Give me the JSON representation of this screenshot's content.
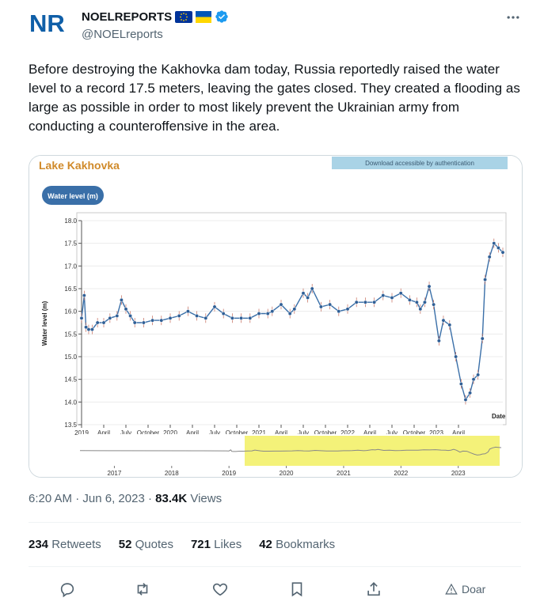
{
  "author": {
    "logo_text": "NR",
    "name": "NOELREPORTS",
    "handle": "@NOELreports",
    "badge_colors": {
      "eu_blue": "#003399",
      "eu_star": "#ffcc00",
      "ua_blue": "#0057b7",
      "ua_yellow": "#ffd700",
      "verified": "#1d9bf0"
    }
  },
  "tweet": {
    "text": "Before destroying the Kakhovka dam today, Russia reportedly raised the water level to a record 17.5 meters, leaving the gates closed. They created a flooding as large as possible in order to most likely prevent the Ukrainian army from conducting a counteroffensive in the area."
  },
  "media": {
    "heading": "Lake Kakhovka",
    "download_banner": "Download accessible by authentication",
    "pill": "Water level (m)"
  },
  "chart_data": {
    "type": "line",
    "ylabel": "Water level (m)",
    "xlabel": "Date",
    "ylim": [
      13.5,
      18.0
    ],
    "yticks": [
      "18.0",
      "17.5",
      "17.0",
      "16.5",
      "16.0",
      "15.5",
      "15.0",
      "14.5",
      "14.0",
      "13.5"
    ],
    "xticks": [
      "2019",
      "April",
      "July",
      "October",
      "2020",
      "April",
      "July",
      "October",
      "2021",
      "April",
      "July",
      "October",
      "2022",
      "April",
      "July",
      "October",
      "2023",
      "April"
    ],
    "overview_ticks": [
      "2017",
      "2018",
      "2019",
      "2020",
      "2021",
      "2022",
      "2023"
    ],
    "series": [
      {
        "x": [
          2019.0,
          2019.03,
          2019.05,
          2019.08,
          2019.12,
          2019.18,
          2019.25,
          2019.32,
          2019.4,
          2019.45,
          2019.5,
          2019.55,
          2019.6,
          2019.7,
          2019.8,
          2019.9,
          2020.0,
          2020.1,
          2020.2,
          2020.3,
          2020.4,
          2020.5,
          2020.6,
          2020.7,
          2020.8,
          2020.9,
          2021.0,
          2021.1,
          2021.15,
          2021.25,
          2021.35,
          2021.4,
          2021.5,
          2021.55,
          2021.6,
          2021.7,
          2021.8,
          2021.9,
          2022.0,
          2022.1,
          2022.2,
          2022.3,
          2022.4,
          2022.5,
          2022.6,
          2022.7,
          2022.78,
          2022.82,
          2022.87,
          2022.92,
          2022.97,
          2023.03,
          2023.08,
          2023.15,
          2023.22,
          2023.28,
          2023.33,
          2023.38,
          2023.42,
          2023.47,
          2023.52,
          2023.55,
          2023.6,
          2023.65,
          2023.7,
          2023.75
        ],
        "y": [
          15.85,
          16.35,
          15.65,
          15.6,
          15.6,
          15.75,
          15.75,
          15.85,
          15.9,
          16.25,
          16.05,
          15.9,
          15.75,
          15.75,
          15.8,
          15.8,
          15.85,
          15.9,
          16.0,
          15.9,
          15.85,
          16.1,
          15.95,
          15.85,
          15.85,
          15.85,
          15.95,
          15.95,
          16.0,
          16.15,
          15.95,
          16.05,
          16.4,
          16.3,
          16.5,
          16.1,
          16.15,
          16.0,
          16.05,
          16.2,
          16.2,
          16.2,
          16.35,
          16.3,
          16.4,
          16.25,
          16.2,
          16.05,
          16.2,
          16.55,
          16.15,
          15.35,
          15.8,
          15.7,
          15.0,
          14.4,
          14.05,
          14.2,
          14.5,
          14.6,
          15.4,
          16.7,
          17.2,
          17.5,
          17.4,
          17.3
        ]
      }
    ],
    "grid": true
  },
  "meta": {
    "time": "6:20 AM",
    "date": "Jun 6, 2023",
    "views_count": "83.4K",
    "views_label": "Views"
  },
  "stats": {
    "retweets_count": "234",
    "retweets_label": "Retweets",
    "quotes_count": "52",
    "quotes_label": "Quotes",
    "likes_count": "721",
    "likes_label": "Likes",
    "bookmarks_count": "42",
    "bookmarks_label": "Bookmarks"
  },
  "actions": {
    "reply": "reply-icon",
    "retweet": "retweet-icon",
    "like": "heart-icon",
    "bookmark": "bookmark-icon",
    "share": "share-icon",
    "donate_label": "Doar"
  }
}
